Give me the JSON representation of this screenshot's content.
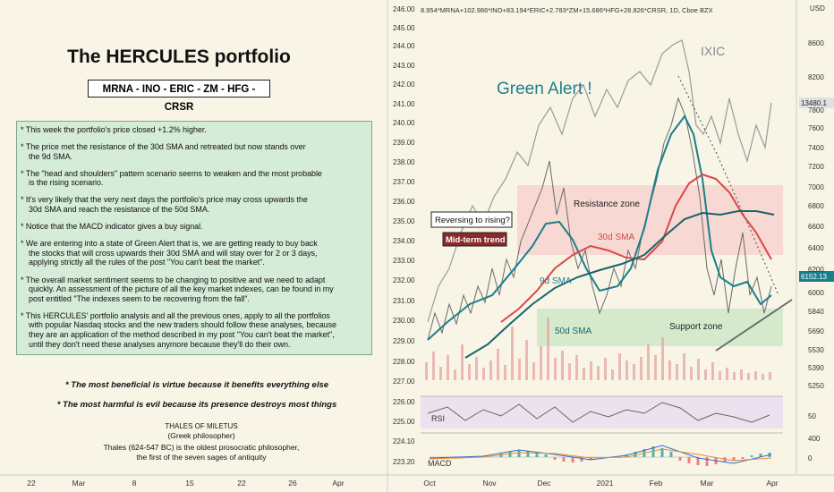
{
  "left_panel": {
    "title": "The HERCULES portfolio",
    "tickers": "MRNA - INO - ERIC - ZM - HFG - CRSR",
    "notes": [
      [
        "* This week the portfolio's price closed +1.2% higher."
      ],
      [
        "* The price met the resistance of the 30d SMA and retreated but now stands over",
        "the 9d SMA."
      ],
      [
        "* The \"head and shoulders\" pattern scenario seems to weaken and the most probable",
        "is the rising scenario."
      ],
      [
        "* It's very likely that the very next days the portfolio's price may cross upwards the",
        "30d SMA and reach the resistance of the 50d SMA."
      ],
      [
        "* Notice that the MACD indicator gives a buy signal."
      ],
      [
        "* We are entering into a state of Green Alert that is, we are getting ready to buy back",
        "the stocks that will cross upwards their 30d SMA and will stay over for 2 or 3 days,",
        "applying strictly all the rules of the post \"You can't beat the market\"."
      ],
      [
        "* The overall market sentiment seems to be changing to positive and we need to adapt",
        "quickly. An assessment of the picture of all the key market indexes, can be found in my",
        "post entitled \"The indexes seem to be recovering from the fall\"."
      ],
      [
        "* This HERCULES' portfolio analysis and all the previous ones, apply to all the portfolios",
        "with popular Nasdaq stocks and the new traders should follow these analyses, because",
        "they are an application of the method described in my post \"You can't beat the market\",",
        "until they don't need these analyses anymore because they'll do their own."
      ]
    ],
    "quotes": [
      "* The most beneficial is virtue because it benefits everything else",
      "* The most harmful is evil because its presence destroys most things"
    ],
    "attribution": {
      "name": "THALES OF MILETUS",
      "role": "(Greek philosopher)",
      "bio": [
        "Thales (624-547 BC) is the oldest prosocratic philosopher,",
        "the first of the seven sages of antiquity"
      ]
    },
    "time_axis": [
      "22",
      "Mar",
      "8",
      "15",
      "22",
      "26",
      "Apr"
    ]
  },
  "chart": {
    "symbol": "8.954*MRNA+102.986*INO+83.194*ERIC+2.783*ZM+15.686*HFG+28.826*CRSR, 1D, Cboe BZX",
    "currency": "USD",
    "annotations": {
      "green_alert": "Green Alert !",
      "ixic": "IXIC",
      "resistance": "Resistance zone",
      "reversing": "Reversing to rising?",
      "mid_term": "Mid-term trend",
      "sma30": "30d SMA",
      "sma9": "9d SMA",
      "sma50": "50d SMA",
      "support": "Support zone",
      "rsi": "RSI",
      "macd": "MACD"
    },
    "left_axis": [
      "246.00",
      "245.00",
      "244.00",
      "243.00",
      "242.00",
      "241.00",
      "240.00",
      "239.00",
      "238.00",
      "237.00",
      "236.00",
      "235.00",
      "234.00",
      "233.00",
      "232.00",
      "231.00",
      "230.00",
      "229.00",
      "228.00",
      "227.00",
      "226.00",
      "225.00",
      "224.10",
      "223.20"
    ],
    "right_axis": [
      "8600",
      "8200",
      "7800",
      "7600",
      "7400",
      "7200",
      "7000",
      "6800",
      "6600",
      "6400",
      "6200",
      "6000",
      "5840",
      "5690",
      "5530",
      "5390",
      "5250",
      "50",
      "400",
      "0"
    ],
    "price_labels": [
      "13480.1",
      "6152.13"
    ],
    "time_axis": [
      "Oct",
      "Nov",
      "Dec",
      "2021",
      "Feb",
      "Mar",
      "Apr"
    ]
  }
}
